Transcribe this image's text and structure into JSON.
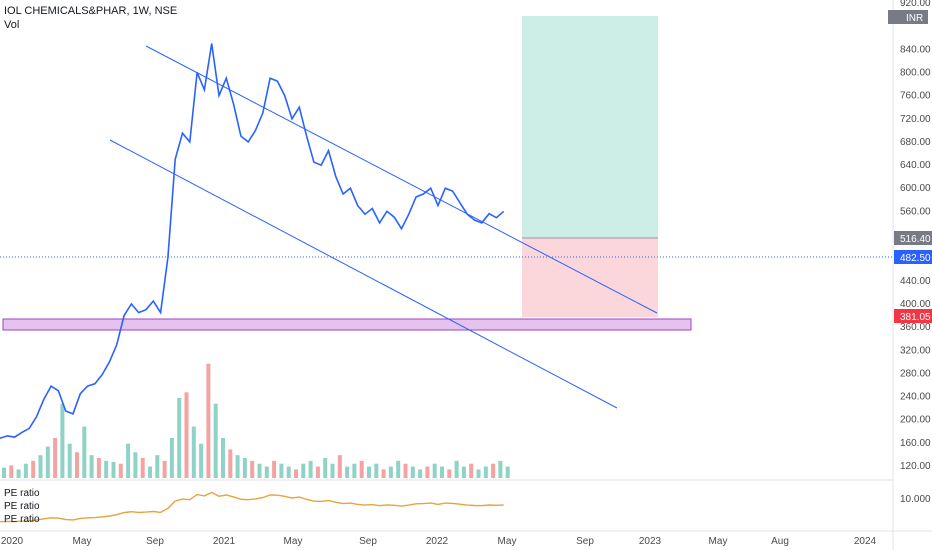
{
  "header": {
    "symbol_line": "IOL CHEMICALS&PHAR, 1W, NSE",
    "volume_label": "Vol"
  },
  "currency_label": "INR",
  "pe_labels": [
    "PE ratio",
    "PE ratio",
    "PE ratio"
  ],
  "colors": {
    "price_line": "#2962ff",
    "vol_up": "#8fd3c7",
    "vol_down": "#f4a3a3",
    "pe_line": "#e8a33b",
    "profit_zone": "#cdeee6",
    "loss_zone": "#fbd7db",
    "support_zone": "#e6c3ef",
    "support_border": "#a040c0",
    "current_price_badge": "#2962ff",
    "stop_badge": "#f23645",
    "target_badge": "#787b86"
  },
  "chart_data": {
    "type": "line",
    "price_axis": {
      "ticks": [
        120,
        160,
        200,
        240,
        280,
        320,
        360,
        400,
        440,
        480,
        520,
        560,
        600,
        640,
        680,
        720,
        760,
        800,
        840,
        880,
        920
      ],
      "tick_labels": [
        "120.00",
        "160.00",
        "200.00",
        "240.00",
        "280.00",
        "320.00",
        "360.00",
        "400.00",
        "440.00",
        "480.00",
        "",
        "560.00",
        "600.00",
        "640.00",
        "680.00",
        "720.00",
        "760.00",
        "800.00",
        "840.00",
        "",
        "920.00"
      ]
    },
    "pe_axis": {
      "ticks": [
        10
      ],
      "tick_labels": [
        "10.000"
      ]
    },
    "time_axis": {
      "labels": [
        "2020",
        "May",
        "Sep",
        "2021",
        "May",
        "Sep",
        "2022",
        "May",
        "Sep",
        "2023",
        "May",
        "Aug",
        "2024"
      ]
    },
    "badges": {
      "target": "516.40",
      "current": "482.50",
      "stop": "381.05"
    },
    "price_series": {
      "name": "IOL CHEMICALS&PHAR",
      "x_weeks": [
        0,
        2,
        4,
        6,
        8,
        10,
        12,
        14,
        16,
        18,
        20,
        22,
        24,
        26,
        28,
        30,
        32,
        34,
        36,
        38,
        40,
        42,
        44,
        46,
        48,
        50,
        52,
        54,
        56,
        58,
        60,
        62,
        64,
        66,
        68,
        70,
        72,
        74,
        76,
        78,
        80,
        82,
        84,
        86,
        88,
        90,
        92,
        94,
        96,
        98,
        100,
        102,
        104,
        106,
        108,
        110,
        112,
        114,
        116,
        118,
        120,
        122,
        124,
        126,
        128,
        130,
        132,
        134,
        136,
        138
      ],
      "values": [
        168,
        172,
        170,
        178,
        185,
        205,
        235,
        258,
        250,
        215,
        210,
        245,
        258,
        262,
        278,
        300,
        330,
        380,
        400,
        385,
        390,
        405,
        385,
        480,
        650,
        695,
        680,
        800,
        770,
        850,
        760,
        790,
        745,
        690,
        680,
        700,
        730,
        790,
        785,
        760,
        720,
        740,
        690,
        645,
        640,
        665,
        620,
        590,
        600,
        570,
        555,
        565,
        540,
        560,
        550,
        530,
        555,
        585,
        590,
        600,
        570,
        600,
        595,
        575,
        555,
        545,
        540,
        556,
        549,
        560
      ]
    },
    "volume_series": {
      "name": "Vol",
      "colors_up_down": [
        "up",
        "down"
      ],
      "values": [
        18,
        22,
        15,
        25,
        30,
        40,
        55,
        70,
        130,
        60,
        45,
        90,
        40,
        35,
        30,
        28,
        25,
        60,
        45,
        35,
        20,
        40,
        30,
        70,
        140,
        150,
        90,
        60,
        200,
        130,
        70,
        50,
        40,
        35,
        30,
        25,
        20,
        30,
        25,
        20,
        15,
        25,
        30,
        20,
        35,
        25,
        40,
        20,
        25,
        30,
        20,
        25,
        15,
        20,
        30,
        25,
        20,
        15,
        20,
        25,
        20,
        15,
        30,
        20,
        25,
        15,
        20,
        25,
        30,
        20
      ]
    },
    "pe_series": {
      "name": "PE ratio"
    },
    "annotations": [
      "descending channel",
      "support zone",
      "long position: entry 482.50, target 516.40, stop 381.05"
    ]
  }
}
